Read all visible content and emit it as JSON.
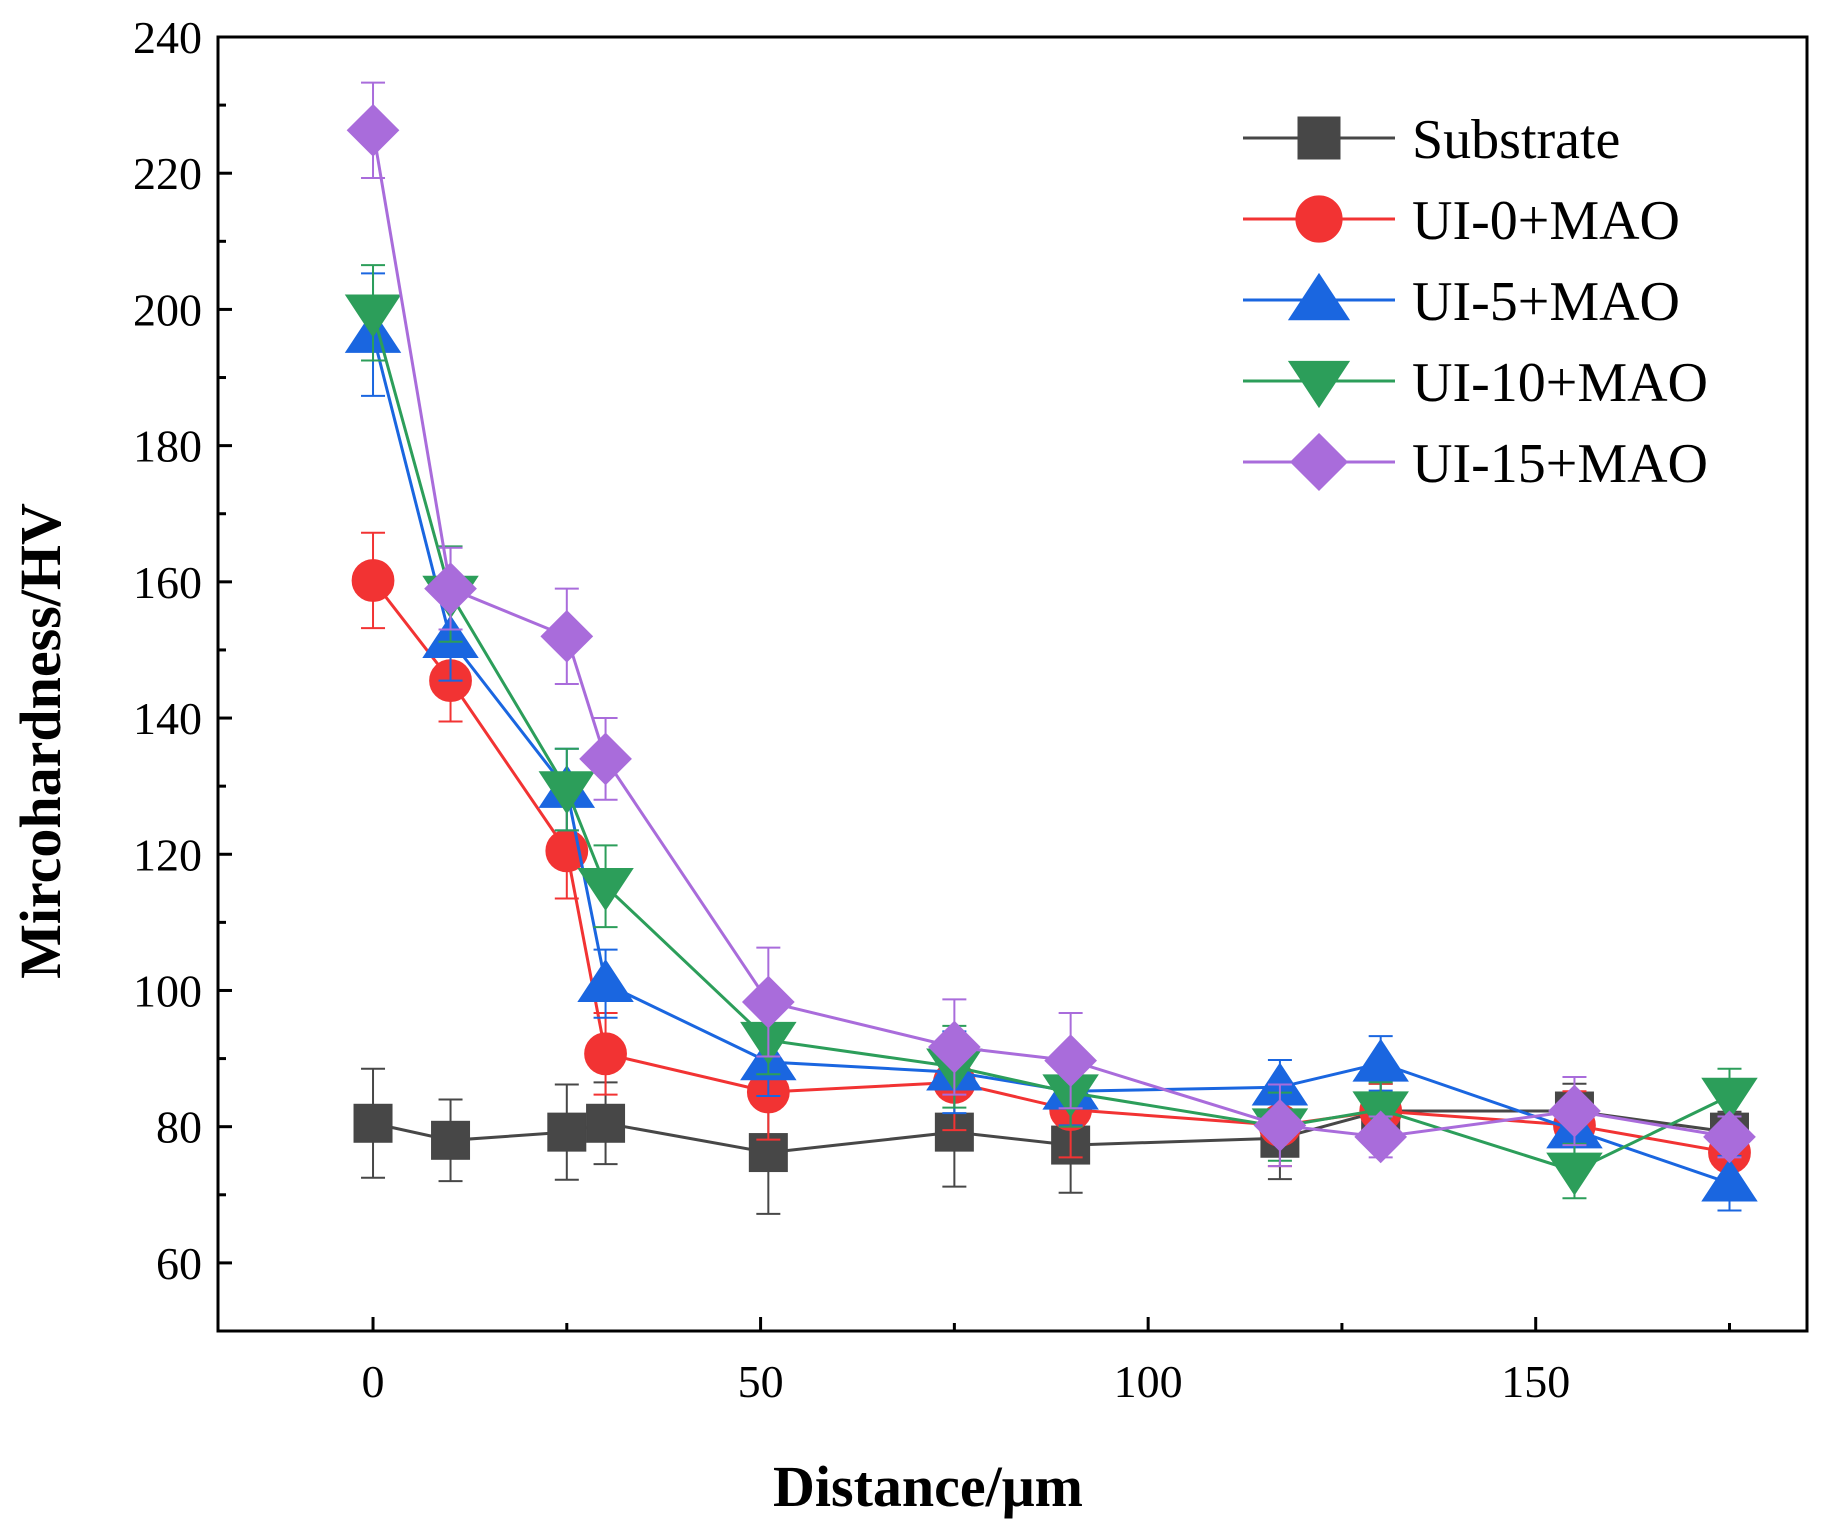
{
  "chart_data": {
    "type": "line",
    "title": "",
    "xlabel": "Distance/μm",
    "ylabel": "Mircohardness/HV",
    "xlim": [
      -20,
      185
    ],
    "ylim": [
      50,
      240
    ],
    "xticks": [
      0,
      50,
      100,
      150
    ],
    "yticks": [
      60,
      80,
      100,
      120,
      140,
      160,
      180,
      200,
      220,
      240
    ],
    "grid": false,
    "legend_position": "top-right",
    "x": [
      0,
      10,
      25,
      30,
      51,
      75,
      90,
      117,
      130,
      155,
      175
    ],
    "series": [
      {
        "name": "Substrate",
        "color": "#474747",
        "marker": "square",
        "values": [
          80.5,
          78,
          79.2,
          80.5,
          76.2,
          79.2,
          77.3,
          78.3,
          82.3,
          82.3,
          79.2
        ],
        "errors": [
          8,
          6,
          7,
          6,
          9,
          8,
          7,
          6,
          4,
          4,
          3
        ]
      },
      {
        "name": "UI-0+MAO",
        "color": "#f23333",
        "marker": "circle",
        "values": [
          160.2,
          145.5,
          120.5,
          90.7,
          85.1,
          86.5,
          82.5,
          80.2,
          82.3,
          80.2,
          76.2
        ],
        "errors": [
          7,
          6,
          7,
          6,
          7,
          7,
          7,
          6,
          4,
          5,
          4
        ]
      },
      {
        "name": "UI-5+MAO",
        "color": "#1a66e0",
        "marker": "triangle-up",
        "values": [
          196.3,
          151.5,
          129.5,
          101.0,
          89.5,
          88.0,
          85.2,
          85.8,
          89.3,
          79.5,
          71.7
        ],
        "errors": [
          9,
          6,
          6,
          5,
          5,
          6,
          5,
          4,
          4,
          4,
          4
        ]
      },
      {
        "name": "UI-10+MAO",
        "color": "#2c9e5a",
        "marker": "triangle-down",
        "values": [
          199.5,
          158.2,
          129.5,
          115.3,
          92.7,
          88.8,
          85.0,
          80.0,
          82.5,
          73.5,
          84.5
        ],
        "errors": [
          7,
          7,
          6,
          6,
          5,
          6,
          5,
          5,
          4,
          4,
          4
        ]
      },
      {
        "name": "UI-15+MAO",
        "color": "#a96cdb",
        "marker": "diamond",
        "values": [
          226.3,
          159.0,
          152.0,
          134.0,
          98.3,
          91.7,
          89.7,
          80.2,
          78.5,
          82.3,
          78.5
        ],
        "errors": [
          7,
          6,
          7,
          6,
          8,
          7,
          7,
          6,
          3,
          5,
          3
        ]
      }
    ]
  }
}
